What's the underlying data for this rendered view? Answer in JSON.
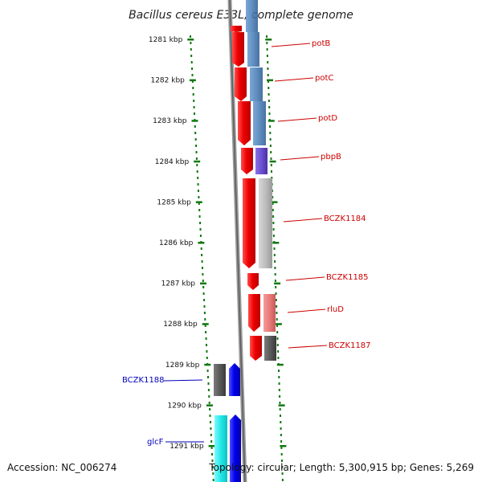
{
  "title": "Bacillus cereus E33L, complete genome",
  "footer": {
    "accession": "Accession: NC_006274",
    "topology": "Topology: circular; Length: 5,300,915 bp; Genes: 5,269"
  },
  "ruler": {
    "unit": "kbp",
    "ticks": [
      "1281 kbp",
      "1282 kbp",
      "1283 kbp",
      "1284 kbp",
      "1285 kbp",
      "1286 kbp",
      "1287 kbp",
      "1288 kbp",
      "1289 kbp",
      "1290 kbp",
      "1291 kbp"
    ]
  },
  "genes_forward": [
    {
      "name": "potB",
      "color": "#4a7fb8"
    },
    {
      "name": "potC",
      "color": "#4a7fb8"
    },
    {
      "name": "potD",
      "color": "#4a7fb8"
    },
    {
      "name": "pbpB",
      "color": "#6a4fcf"
    },
    {
      "name": "BCZK1184",
      "color": "#bdbdbd"
    },
    {
      "name": "BCZK1185",
      "color": null
    },
    {
      "name": "rluD",
      "color": "#e87a7a"
    },
    {
      "name": "BCZK1187",
      "color": "#5a5a5a"
    }
  ],
  "genes_reverse": [
    {
      "name": "BCZK1188",
      "color": "#5a5a5a"
    },
    {
      "name": "glcF",
      "color": "#22e8e8"
    }
  ],
  "colors": {
    "forward_strand": "#ee0000",
    "reverse_strand": "#0000ee",
    "tick": "#117711",
    "forward_label": "#cc0000",
    "reverse_label": "#0000bb"
  }
}
